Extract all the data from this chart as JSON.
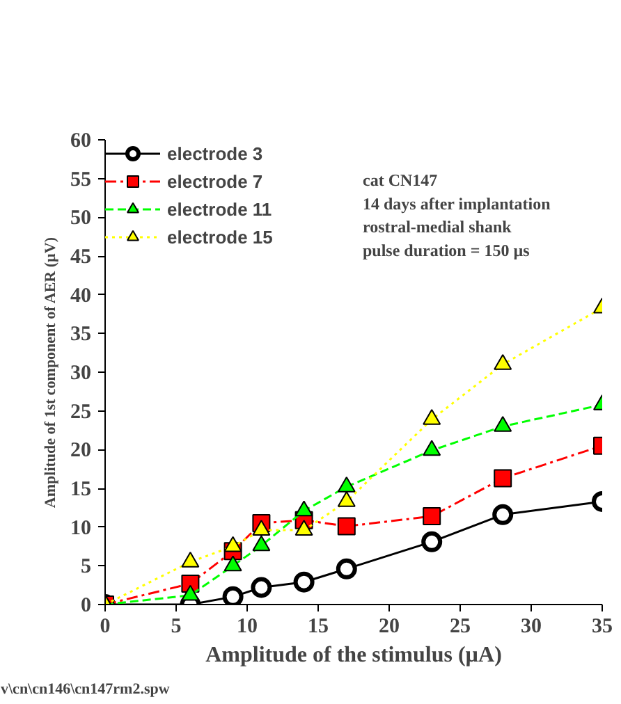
{
  "chart_data": {
    "type": "line",
    "xlabel": "Amplitude of the stimulus (µA)",
    "ylabel": "Amplitude of 1st component of AER (µV)",
    "annotations": [
      "cat CN147\n14 days after implantation\nrostral-medial shank\npulse duration = 150 µs",
      "v\\cn\\cn146\\cn147rm2.spw"
    ],
    "x": [
      0,
      6,
      9,
      11,
      14,
      17,
      23,
      28,
      35
    ],
    "series": [
      {
        "name": "electrode 3",
        "color": "#000000",
        "marker": "circle",
        "line_style": "solid",
        "values": [
          0,
          0,
          1.0,
          2.2,
          2.9,
          4.6,
          8.1,
          11.6,
          13.3
        ]
      },
      {
        "name": "electrode 7",
        "color": "#ff0000",
        "marker": "square",
        "line_style": "dashdot",
        "values": [
          0,
          2.7,
          6.9,
          10.5,
          10.9,
          10.1,
          11.4,
          16.3,
          20.5
        ]
      },
      {
        "name": "electrode 11",
        "color": "#00ff00",
        "marker": "triangle",
        "line_style": "dashed",
        "values": [
          0,
          1.2,
          5.0,
          7.6,
          12.1,
          15.2,
          19.9,
          23.0,
          25.8
        ]
      },
      {
        "name": "electrode 15",
        "color": "#ffff00",
        "marker": "triangle",
        "line_style": "dotted",
        "values": [
          0,
          5.5,
          7.5,
          9.6,
          9.6,
          13.3,
          23.9,
          31.0,
          38.3
        ]
      }
    ],
    "xlim": [
      0,
      35
    ],
    "xticks": [
      0,
      5,
      10,
      15,
      20,
      25,
      30,
      35
    ],
    "ylim": [
      0,
      60
    ],
    "yticks": [
      0,
      5,
      10,
      15,
      20,
      25,
      30,
      35,
      40,
      45,
      50,
      55,
      60
    ],
    "grid": false,
    "legend": "top left"
  }
}
